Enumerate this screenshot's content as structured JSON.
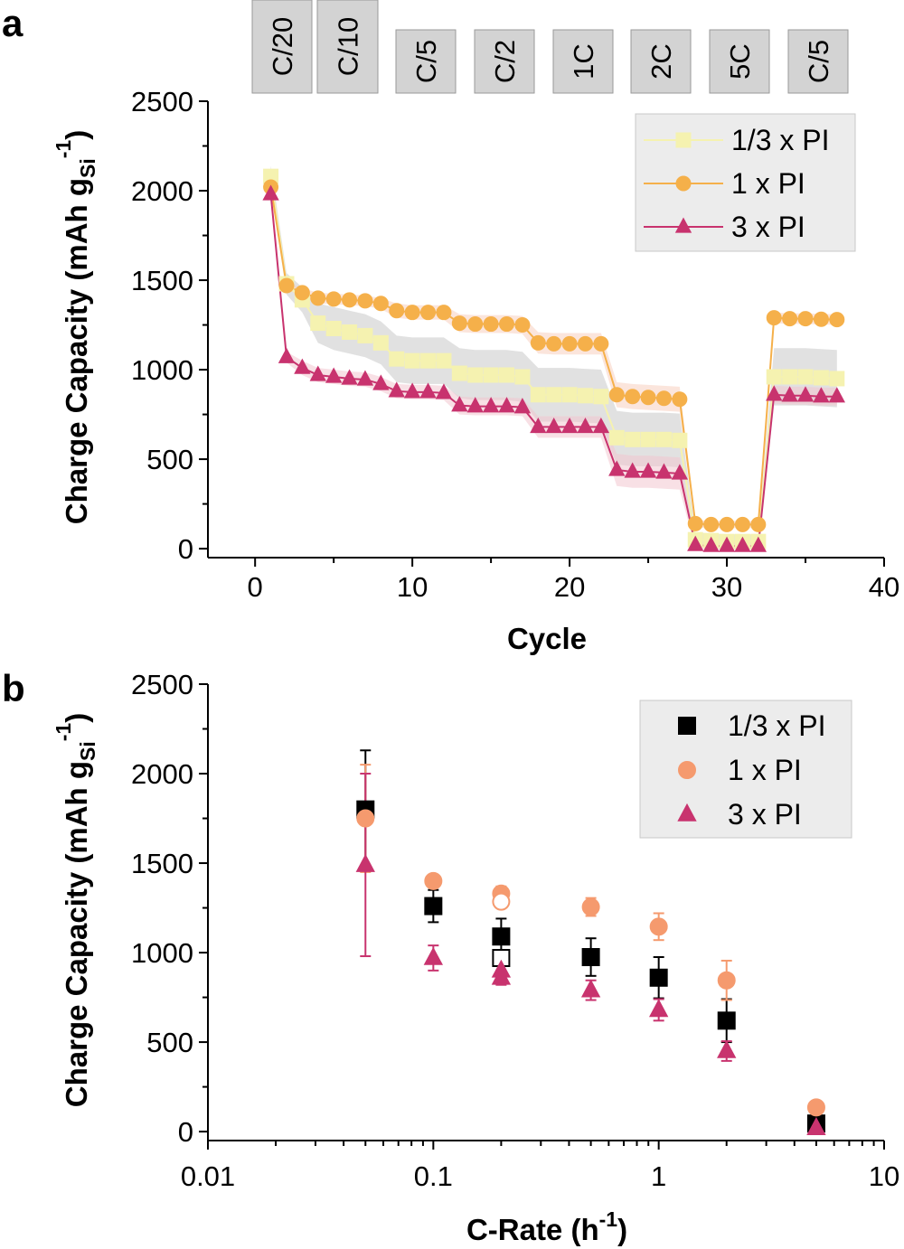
{
  "panels": {
    "a": {
      "letter": "a",
      "xlabel": "Cycle",
      "ylabel_main": "Charge Capacity (mAh g",
      "ylabel_sub": "Si",
      "ylabel_sup": "-1",
      "ylabel_close": ")",
      "rate_labels": [
        "C/20",
        "C/10",
        "C/5",
        "C/2",
        "1C",
        "2C",
        "5C",
        "C/5"
      ]
    },
    "b": {
      "letter": "b",
      "xlabel_main": "C-Rate (h",
      "xlabel_sup": "-1",
      "xlabel_close": ")",
      "ylabel_main": "Charge Capacity (mAh g",
      "ylabel_sub": "Si",
      "ylabel_sup": "-1",
      "ylabel_close": ")"
    }
  },
  "colors": {
    "series_a": [
      "#f5f2b0",
      "#f5b04a",
      "#c8336e"
    ],
    "series_b": [
      "#000000",
      "#f59a6e",
      "#c8336e"
    ],
    "band_a": [
      "#c8c8c8",
      "#f7cfc0",
      "#f2c6cf"
    ],
    "rate_box": "#d3d3d3",
    "legend_bg": "#ececec"
  },
  "chart_data": [
    {
      "type": "line",
      "xlim": [
        -3,
        40
      ],
      "ylim": [
        -50,
        2500
      ],
      "xticks": [
        0,
        10,
        20,
        30,
        40
      ],
      "yticks": [
        0,
        500,
        1000,
        1500,
        2000,
        2500
      ],
      "legend_position": "top-right",
      "series": [
        {
          "name": "1/3 x PI",
          "marker": "square",
          "x": [
            1,
            2,
            3,
            4,
            5,
            6,
            7,
            8,
            9,
            10,
            11,
            12,
            13,
            14,
            15,
            16,
            17,
            18,
            19,
            20,
            21,
            22,
            23,
            24,
            25,
            26,
            27,
            28,
            29,
            30,
            31,
            32,
            33,
            34,
            35,
            36,
            37
          ],
          "y": [
            2080,
            1480,
            1390,
            1260,
            1230,
            1210,
            1190,
            1150,
            1060,
            1050,
            1050,
            1050,
            980,
            970,
            970,
            970,
            960,
            860,
            860,
            860,
            855,
            850,
            620,
            610,
            610,
            610,
            605,
            50,
            45,
            40,
            40,
            40,
            960,
            960,
            960,
            955,
            950
          ],
          "band_halfwidth": [
            60,
            60,
            70,
            110,
            120,
            120,
            120,
            120,
            130,
            130,
            130,
            130,
            140,
            140,
            140,
            140,
            140,
            150,
            150,
            150,
            150,
            150,
            150,
            150,
            150,
            150,
            150,
            40,
            40,
            40,
            40,
            40,
            160,
            160,
            160,
            160,
            160
          ]
        },
        {
          "name": "1 x PI",
          "marker": "circle",
          "x": [
            1,
            2,
            3,
            4,
            5,
            6,
            7,
            8,
            9,
            10,
            11,
            12,
            13,
            14,
            15,
            16,
            17,
            18,
            19,
            20,
            21,
            22,
            23,
            24,
            25,
            26,
            27,
            28,
            29,
            30,
            31,
            32,
            33,
            34,
            35,
            36,
            37
          ],
          "y": [
            2020,
            1470,
            1430,
            1400,
            1395,
            1390,
            1385,
            1370,
            1330,
            1320,
            1320,
            1320,
            1260,
            1255,
            1255,
            1255,
            1250,
            1150,
            1145,
            1145,
            1145,
            1145,
            860,
            850,
            845,
            840,
            835,
            140,
            135,
            135,
            135,
            135,
            1290,
            1285,
            1285,
            1282,
            1280
          ],
          "band_halfwidth": [
            20,
            20,
            25,
            30,
            30,
            30,
            30,
            30,
            40,
            40,
            40,
            40,
            50,
            50,
            50,
            50,
            50,
            60,
            60,
            60,
            60,
            60,
            70,
            70,
            70,
            70,
            70,
            20,
            20,
            20,
            20,
            20,
            30,
            30,
            30,
            30,
            30
          ]
        },
        {
          "name": "3 x PI",
          "marker": "triangle",
          "x": [
            1,
            2,
            3,
            4,
            5,
            6,
            7,
            8,
            9,
            10,
            11,
            12,
            13,
            14,
            15,
            16,
            17,
            18,
            19,
            20,
            21,
            22,
            23,
            24,
            25,
            26,
            27,
            28,
            29,
            30,
            31,
            32,
            33,
            34,
            35,
            36,
            37
          ],
          "y": [
            1980,
            1070,
            1010,
            970,
            960,
            950,
            945,
            920,
            880,
            875,
            875,
            870,
            800,
            795,
            795,
            795,
            790,
            680,
            680,
            680,
            680,
            680,
            440,
            430,
            430,
            425,
            420,
            20,
            15,
            15,
            15,
            15,
            860,
            855,
            855,
            850,
            850
          ],
          "band_halfwidth": [
            15,
            30,
            40,
            40,
            40,
            40,
            40,
            40,
            40,
            40,
            40,
            40,
            50,
            50,
            50,
            50,
            50,
            60,
            60,
            60,
            60,
            60,
            90,
            90,
            90,
            90,
            90,
            20,
            20,
            20,
            20,
            20,
            50,
            50,
            50,
            50,
            50
          ]
        }
      ]
    },
    {
      "type": "scatter",
      "xscale": "log",
      "xlim": [
        0.01,
        10
      ],
      "ylim": [
        -50,
        2500
      ],
      "xticks": [
        0.01,
        0.1,
        1,
        10
      ],
      "xtick_labels": [
        "0.01",
        "0.1",
        "1",
        "10"
      ],
      "yticks": [
        0,
        500,
        1000,
        1500,
        2000,
        2500
      ],
      "legend_position": "top-right",
      "series": [
        {
          "name": "1/3 x PI",
          "marker": "square",
          "points": [
            {
              "x": 0.05,
              "y": 1800,
              "err": 330,
              "filled": true
            },
            {
              "x": 0.1,
              "y": 1260,
              "err": 90,
              "filled": true
            },
            {
              "x": 0.2,
              "y": 1090,
              "err": 100,
              "filled": true
            },
            {
              "x": 0.2,
              "y": 970,
              "err": 0,
              "filled": false
            },
            {
              "x": 0.5,
              "y": 975,
              "err": 105,
              "filled": true
            },
            {
              "x": 1,
              "y": 860,
              "err": 115,
              "filled": true
            },
            {
              "x": 2,
              "y": 620,
              "err": 120,
              "filled": true
            },
            {
              "x": 5,
              "y": 45,
              "err": 0,
              "filled": true
            }
          ]
        },
        {
          "name": "1 x PI",
          "marker": "circle",
          "points": [
            {
              "x": 0.05,
              "y": 1750,
              "err": 300,
              "filled": true
            },
            {
              "x": 0.1,
              "y": 1400,
              "err": 20,
              "filled": true
            },
            {
              "x": 0.2,
              "y": 1330,
              "err": 40,
              "filled": true
            },
            {
              "x": 0.2,
              "y": 1285,
              "err": 0,
              "filled": false
            },
            {
              "x": 0.5,
              "y": 1255,
              "err": 50,
              "filled": true
            },
            {
              "x": 1,
              "y": 1145,
              "err": 75,
              "filled": true
            },
            {
              "x": 2,
              "y": 845,
              "err": 110,
              "filled": true
            },
            {
              "x": 5,
              "y": 135,
              "err": 0,
              "filled": true
            }
          ]
        },
        {
          "name": "3 x PI",
          "marker": "triangle",
          "points": [
            {
              "x": 0.05,
              "y": 1490,
              "err": 510,
              "filled": true
            },
            {
              "x": 0.1,
              "y": 970,
              "err": 70,
              "filled": true
            },
            {
              "x": 0.2,
              "y": 900,
              "err": 40,
              "filled": true
            },
            {
              "x": 0.2,
              "y": 860,
              "err": 40,
              "filled": true
            },
            {
              "x": 0.5,
              "y": 790,
              "err": 55,
              "filled": true
            },
            {
              "x": 1,
              "y": 680,
              "err": 60,
              "filled": true
            },
            {
              "x": 2,
              "y": 450,
              "err": 55,
              "filled": true
            },
            {
              "x": 5,
              "y": 20,
              "err": 0,
              "filled": true
            }
          ]
        }
      ]
    }
  ]
}
